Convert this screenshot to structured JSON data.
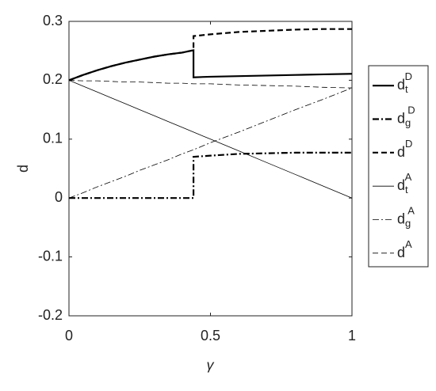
{
  "chart_data": {
    "type": "line",
    "xlabel": "γ",
    "ylabel": "d",
    "x": [
      0,
      0.05,
      0.1,
      0.15,
      0.2,
      0.25,
      0.3,
      0.35,
      0.4,
      0.44,
      0.44,
      0.5,
      0.6,
      0.7,
      0.8,
      0.9,
      1
    ],
    "xlim": [
      0,
      1
    ],
    "xticks": [
      0,
      0.5,
      1
    ],
    "ylim": [
      -0.2,
      0.3
    ],
    "yticks": [
      -0.2,
      -0.1,
      0,
      0.1,
      0.2,
      0.3
    ],
    "grid": false,
    "legend": "outside-right",
    "series": [
      {
        "name": "d",
        "sub": "t",
        "sup": "D",
        "color": "#000000",
        "style": "solid",
        "linewidth": 2.2,
        "values": [
          0.2,
          0.209,
          0.217,
          0.224,
          0.23,
          0.235,
          0.24,
          0.244,
          0.247,
          0.251,
          0.205,
          0.206,
          0.207,
          0.208,
          0.209,
          0.21,
          0.211
        ]
      },
      {
        "name": "d",
        "sub": "g",
        "sup": "D",
        "color": "#000000",
        "style": "dash-dot",
        "linewidth": 2.2,
        "values": [
          0,
          0,
          0,
          0,
          0,
          0,
          0,
          0,
          0,
          0,
          0.07,
          0.072,
          0.075,
          0.076,
          0.077,
          0.077,
          0.077
        ]
      },
      {
        "name": "d",
        "sup": "D",
        "color": "#000000",
        "style": "dashed",
        "linewidth": 2.2,
        "values": [
          0.2,
          0.209,
          0.217,
          0.224,
          0.23,
          0.235,
          0.24,
          0.244,
          0.247,
          0.251,
          0.275,
          0.278,
          0.282,
          0.284,
          0.286,
          0.287,
          0.287
        ]
      },
      {
        "name": "d",
        "sub": "t",
        "sup": "A",
        "color": "#000000",
        "style": "solid",
        "linewidth": 0.8,
        "values": [
          0.2,
          0.19,
          0.18,
          0.17,
          0.16,
          0.15,
          0.14,
          0.13,
          0.12,
          0.112,
          0.112,
          0.1,
          0.08,
          0.06,
          0.04,
          0.02,
          0
        ]
      },
      {
        "name": "d",
        "sub": "g",
        "sup": "A",
        "color": "#000000",
        "style": "dash-dot",
        "linewidth": 0.8,
        "values": [
          0,
          0.009,
          0.019,
          0.028,
          0.037,
          0.047,
          0.056,
          0.065,
          0.075,
          0.082,
          0.082,
          0.094,
          0.112,
          0.131,
          0.15,
          0.168,
          0.187
        ]
      },
      {
        "name": "d",
        "sup": "A",
        "color": "#000000",
        "style": "dashed",
        "linewidth": 0.8,
        "values": [
          0.2,
          0.199,
          0.199,
          0.198,
          0.197,
          0.197,
          0.196,
          0.195,
          0.195,
          0.194,
          0.194,
          0.194,
          0.192,
          0.191,
          0.19,
          0.188,
          0.187
        ]
      }
    ]
  }
}
